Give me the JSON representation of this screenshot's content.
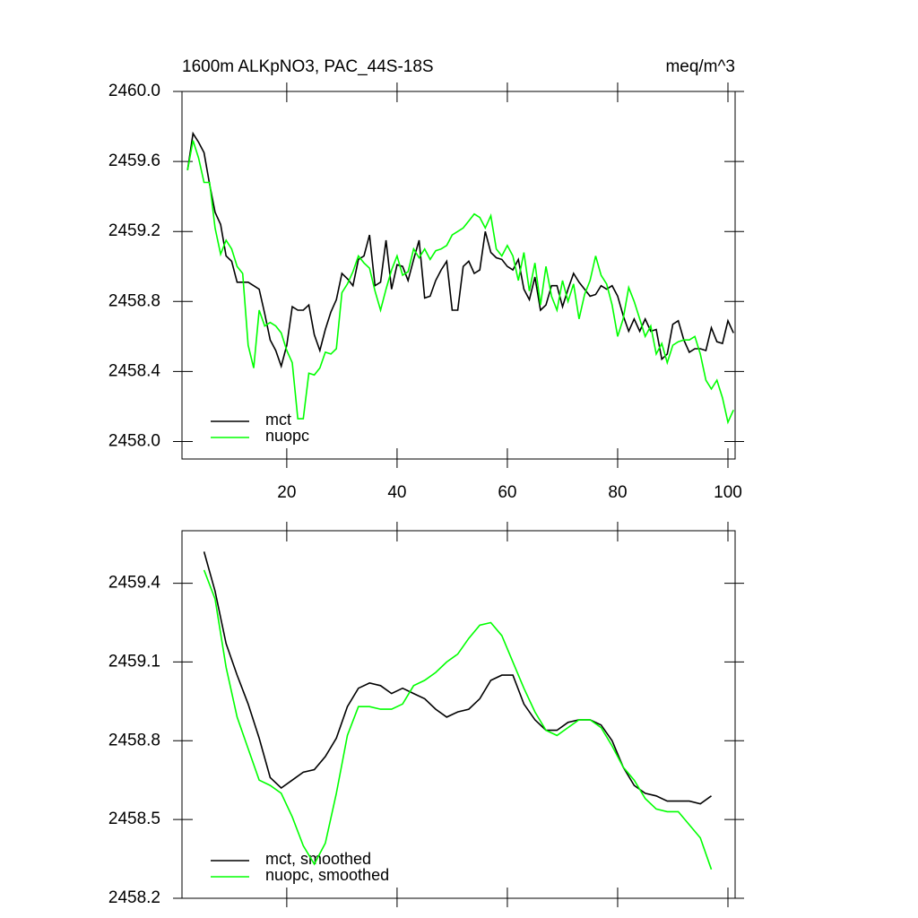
{
  "chart_data": [
    {
      "type": "line",
      "title": "1600m ALKpNO3, PAC_44S-18S",
      "units": "meq/m^3",
      "x": [
        2,
        3,
        4,
        5,
        6,
        7,
        8,
        9,
        10,
        11,
        12,
        13,
        14,
        15,
        16,
        17,
        18,
        19,
        20,
        21,
        22,
        23,
        24,
        25,
        26,
        27,
        28,
        29,
        30,
        31,
        32,
        33,
        34,
        35,
        36,
        37,
        38,
        39,
        40,
        41,
        42,
        43,
        44,
        45,
        46,
        47,
        48,
        49,
        50,
        51,
        52,
        53,
        54,
        55,
        56,
        57,
        58,
        59,
        60,
        61,
        62,
        63,
        64,
        65,
        66,
        67,
        68,
        69,
        70,
        71,
        72,
        73,
        74,
        75,
        76,
        77,
        78,
        79,
        80,
        81,
        82,
        83,
        84,
        85,
        86,
        87,
        88,
        89,
        90,
        91,
        92,
        93,
        94,
        95,
        96,
        97,
        98,
        99,
        100,
        101
      ],
      "series": [
        {
          "name": "mct",
          "color": "#000000",
          "values": [
            2459.55,
            2459.76,
            2459.71,
            2459.65,
            2459.47,
            2459.31,
            2459.24,
            2459.06,
            2459.03,
            2458.91,
            2458.91,
            2458.91,
            2458.89,
            2458.87,
            2458.73,
            2458.58,
            2458.52,
            2458.43,
            2458.55,
            2458.77,
            2458.75,
            2458.75,
            2458.78,
            2458.61,
            2458.52,
            2458.64,
            2458.74,
            2458.81,
            2458.96,
            2458.93,
            2458.89,
            2459.04,
            2459.06,
            2459.18,
            2458.89,
            2458.91,
            2459.15,
            2458.87,
            2459.01,
            2459.0,
            2458.92,
            2459.04,
            2459.15,
            2458.82,
            2458.83,
            2458.92,
            2458.98,
            2459.03,
            2458.75,
            2458.75,
            2459.0,
            2459.03,
            2458.96,
            2458.98,
            2459.2,
            2459.08,
            2459.05,
            2459.04,
            2459.0,
            2458.98,
            2459.04,
            2458.87,
            2458.81,
            2458.94,
            2458.75,
            2458.78,
            2458.89,
            2458.89,
            2458.77,
            2458.87,
            2458.96,
            2458.91,
            2458.87,
            2458.83,
            2458.84,
            2458.89,
            2458.87,
            2458.89,
            2458.83,
            2458.72,
            2458.63,
            2458.7,
            2458.63,
            2458.7,
            2458.63,
            2458.64,
            2458.47,
            2458.5,
            2458.67,
            2458.69,
            2458.58,
            2458.51,
            2458.53,
            2458.53,
            2458.52,
            2458.65,
            2458.57,
            2458.56,
            2458.69,
            2458.62
          ]
        },
        {
          "name": "nuopc",
          "color": "#00ff00",
          "values": [
            2459.55,
            2459.72,
            2459.62,
            2459.48,
            2459.48,
            2459.22,
            2459.07,
            2459.15,
            2459.1,
            2459.0,
            2458.96,
            2458.55,
            2458.42,
            2458.75,
            2458.66,
            2458.68,
            2458.66,
            2458.62,
            2458.52,
            2458.45,
            2458.13,
            2458.13,
            2458.39,
            2458.38,
            2458.42,
            2458.51,
            2458.5,
            2458.53,
            2458.85,
            2458.9,
            2458.97,
            2459.06,
            2459.02,
            2458.99,
            2458.86,
            2458.75,
            2458.87,
            2458.98,
            2459.06,
            2458.95,
            2458.97,
            2459.1,
            2459.05,
            2459.1,
            2459.04,
            2459.09,
            2459.1,
            2459.12,
            2459.18,
            2459.2,
            2459.22,
            2459.26,
            2459.3,
            2459.28,
            2459.22,
            2459.29,
            2459.1,
            2459.06,
            2459.12,
            2459.06,
            2458.92,
            2459.08,
            2458.86,
            2459.02,
            2458.78,
            2459.0,
            2458.83,
            2458.75,
            2458.92,
            2458.8,
            2458.9,
            2458.7,
            2458.84,
            2458.92,
            2459.06,
            2458.95,
            2458.9,
            2458.78,
            2458.6,
            2458.7,
            2458.88,
            2458.8,
            2458.7,
            2458.6,
            2458.66,
            2458.5,
            2458.56,
            2458.45,
            2458.55,
            2458.57,
            2458.58,
            2458.58,
            2458.6,
            2458.5,
            2458.35,
            2458.3,
            2458.35,
            2458.25,
            2458.11,
            2458.18
          ]
        }
      ],
      "xlim": [
        1,
        101.3
      ],
      "ylim": [
        2457.9,
        2460.0
      ],
      "xticks": [
        20,
        40,
        60,
        80,
        100
      ],
      "yticks": [
        {
          "value": 2458.0,
          "label": "2458.0"
        },
        2458.4,
        2458.8,
        2459.2,
        2459.6,
        {
          "value": 2460.0,
          "label": "2460.0"
        }
      ],
      "xtick_labels": true,
      "legend": "lower left"
    },
    {
      "type": "line",
      "x": [
        5,
        7,
        9,
        11,
        13,
        15,
        17,
        19,
        21,
        23,
        25,
        27,
        29,
        31,
        33,
        35,
        37,
        39,
        41,
        43,
        45,
        47,
        49,
        51,
        53,
        55,
        57,
        59,
        61,
        63,
        65,
        67,
        69,
        71,
        73,
        75,
        77,
        79,
        81,
        83,
        85,
        87,
        89,
        91,
        93,
        95,
        97
      ],
      "series": [
        {
          "name": "mct, smoothed",
          "color": "#000000",
          "values": [
            2459.52,
            2459.37,
            2459.17,
            2459.05,
            2458.94,
            2458.81,
            2458.66,
            2458.62,
            2458.65,
            2458.68,
            2458.69,
            2458.74,
            2458.81,
            2458.93,
            2459.0,
            2459.02,
            2459.01,
            2458.98,
            2459.0,
            2458.98,
            2458.96,
            2458.92,
            2458.89,
            2458.91,
            2458.92,
            2458.96,
            2459.03,
            2459.05,
            2459.05,
            2458.94,
            2458.88,
            2458.84,
            2458.84,
            2458.87,
            2458.88,
            2458.88,
            2458.86,
            2458.8,
            2458.7,
            2458.63,
            2458.6,
            2458.59,
            2458.57,
            2458.57,
            2458.57,
            2458.56,
            2458.59
          ]
        },
        {
          "name": "nuopc, smoothed",
          "color": "#00ff00",
          "values": [
            2459.45,
            2459.34,
            2459.08,
            2458.89,
            2458.77,
            2458.65,
            2458.63,
            2458.6,
            2458.51,
            2458.4,
            2458.33,
            2458.41,
            2458.6,
            2458.82,
            2458.93,
            2458.93,
            2458.92,
            2458.92,
            2458.94,
            2459.01,
            2459.03,
            2459.06,
            2459.1,
            2459.13,
            2459.19,
            2459.24,
            2459.25,
            2459.2,
            2459.1,
            2459.0,
            2458.91,
            2458.84,
            2458.82,
            2458.85,
            2458.88,
            2458.88,
            2458.85,
            2458.78,
            2458.7,
            2458.65,
            2458.58,
            2458.54,
            2458.53,
            2458.53,
            2458.48,
            2458.43,
            2458.31
          ]
        }
      ],
      "xlim": [
        1,
        101.3
      ],
      "ylim": [
        2458.2,
        2459.6
      ],
      "xticks": [
        20,
        40,
        60,
        80,
        100
      ],
      "yticks": [
        2458.2,
        2458.5,
        2458.8,
        2459.1,
        2459.4
      ],
      "xtick_labels": false,
      "legend": "lower left"
    }
  ]
}
